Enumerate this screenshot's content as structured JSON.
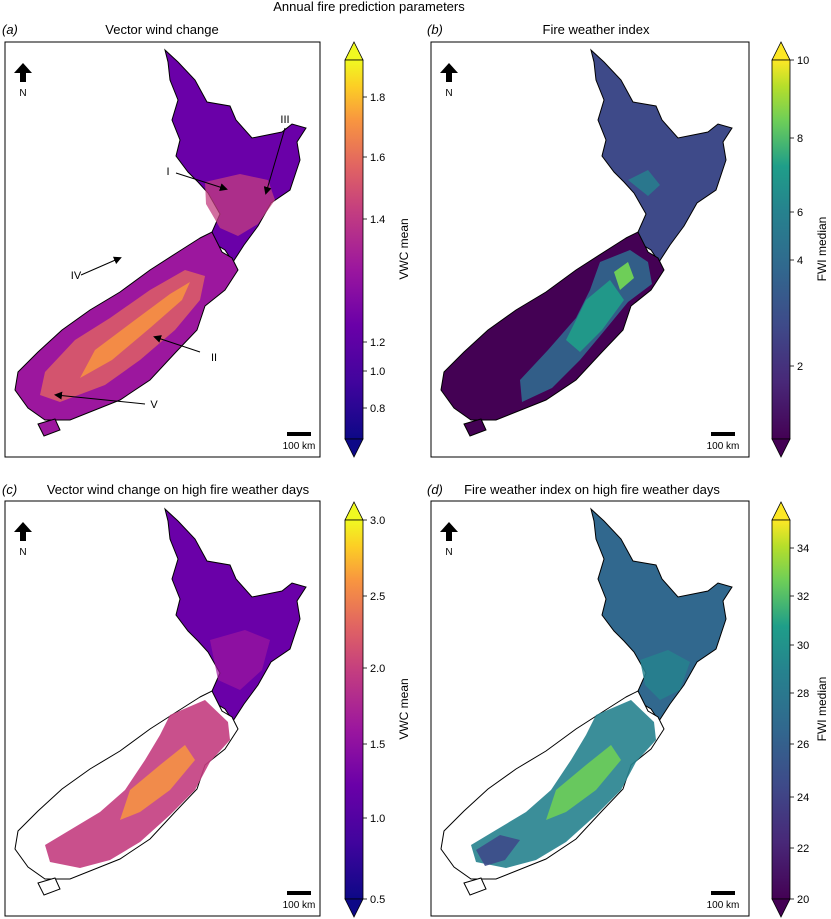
{
  "figure": {
    "title": "Annual fire prediction parameters",
    "north_label": "N",
    "scale_bar_label": "100 km"
  },
  "chart_data": [
    {
      "type": "map",
      "panel_letter": "(a)",
      "title": "Vector wind change",
      "colorbar_label": "VWC mean",
      "colormap": "plasma",
      "colorbar_ticks": [
        "0.8",
        "1.0",
        "1.0",
        "1.2",
        "1.4",
        "1.6",
        "1.8"
      ],
      "annotations": [
        "I",
        "II",
        "III",
        "IV",
        "V"
      ]
    },
    {
      "type": "map",
      "panel_letter": "(b)",
      "title": "Fire weather index",
      "colorbar_label": "FWI median",
      "colormap": "viridis",
      "colorbar_ticks": [
        "2",
        "4",
        "6",
        "8",
        "10"
      ]
    },
    {
      "type": "map",
      "panel_letter": "(c)",
      "title": "Vector wind change on high fire weather days",
      "colorbar_label": "VWC mean",
      "colormap": "plasma",
      "colorbar_ticks": [
        "0.5",
        "1.0",
        "1.5",
        "2.0",
        "2.5",
        "3.0"
      ]
    },
    {
      "type": "map",
      "panel_letter": "(d)",
      "title": "Fire weather index on high fire weather days",
      "colorbar_label": "FWI median",
      "colormap": "viridis",
      "colorbar_ticks": [
        "20",
        "22",
        "24",
        "26",
        "28",
        "30",
        "32",
        "34"
      ]
    }
  ]
}
